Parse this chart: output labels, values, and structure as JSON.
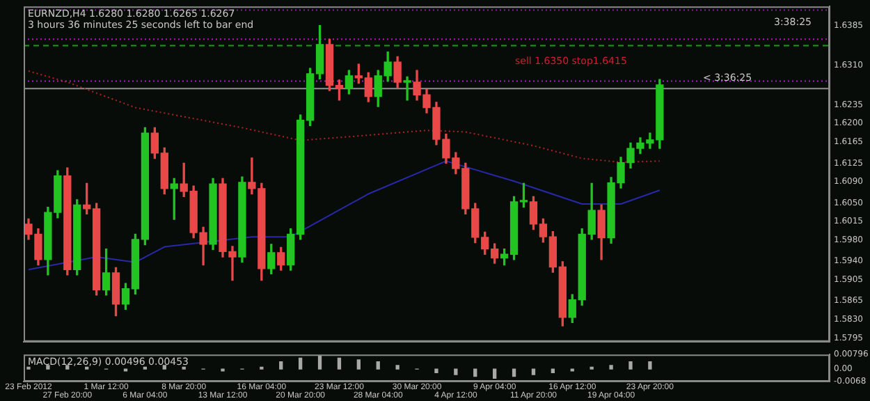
{
  "chart_data": [
    {
      "type": "candlestick",
      "title": "EURNZD,H4  1.6280 1.6280 1.6265 1.6267",
      "subtitle": "3 hours 36 minutes 25 seconds left to bar end",
      "annotations": [
        "sell 1.6350  stop1.6415",
        "3:38:25",
        "< 3:36:25"
      ],
      "categories": [
        null,
        null,
        null,
        null,
        null,
        null,
        null,
        null,
        null,
        null,
        null,
        null,
        null,
        null,
        null,
        null,
        null,
        null,
        null,
        null,
        null,
        null,
        null,
        null,
        null,
        null,
        null,
        null,
        null,
        null,
        null,
        null,
        null,
        null,
        null,
        null,
        null,
        null,
        null,
        null,
        null,
        null,
        null,
        null,
        null,
        null,
        null,
        null,
        null,
        null,
        null,
        null,
        null,
        null,
        null,
        null,
        null,
        null,
        null,
        null,
        null,
        null,
        null,
        null,
        null,
        null,
        null,
        null,
        null,
        null,
        null,
        null,
        null,
        null,
        null,
        null,
        null,
        null,
        null,
        null,
        null,
        null,
        null
      ],
      "ohlc": [
        [
          1.601,
          1.602,
          1.5981,
          1.5991
        ],
        [
          1.5991,
          1.6001,
          1.5933,
          1.5943
        ],
        [
          1.5943,
          1.6042,
          1.5914,
          1.6032
        ],
        [
          1.6032,
          1.6111,
          1.6022,
          1.6101
        ],
        [
          1.6101,
          1.6116,
          1.5914,
          1.5924
        ],
        [
          1.5924,
          1.6056,
          1.5914,
          1.6046
        ],
        [
          1.6046,
          1.6087,
          1.6029,
          1.6039
        ],
        [
          1.6039,
          1.6049,
          1.5876,
          1.5886
        ],
        [
          1.5886,
          1.5963,
          1.5876,
          1.5918
        ],
        [
          1.5918,
          1.5928,
          1.5837,
          1.5859
        ],
        [
          1.5859,
          1.5898,
          1.5849,
          1.5888
        ],
        [
          1.5888,
          1.5991,
          1.5878,
          1.5981
        ],
        [
          1.5981,
          1.6192,
          1.5971,
          1.6182
        ],
        [
          1.6182,
          1.6192,
          1.6134,
          1.6144
        ],
        [
          1.6144,
          1.6154,
          1.6067,
          1.6077
        ],
        [
          1.6077,
          1.6096,
          1.6019,
          1.6086
        ],
        [
          1.6086,
          1.6125,
          1.6062,
          1.6072
        ],
        [
          1.6072,
          1.6082,
          1.5984,
          1.5994
        ],
        [
          1.5994,
          1.6004,
          1.5933,
          1.5972
        ],
        [
          1.5972,
          1.6096,
          1.5962,
          1.6086
        ],
        [
          1.6086,
          1.6096,
          1.5948,
          1.5958
        ],
        [
          1.5958,
          1.5968,
          1.5904,
          1.5948
        ],
        [
          1.5948,
          1.6099,
          1.5938,
          1.6089
        ],
        [
          1.6089,
          1.6135,
          1.6067,
          1.6077
        ],
        [
          1.6077,
          1.6087,
          1.5904,
          1.5926
        ],
        [
          1.5926,
          1.5972,
          1.5916,
          1.5956
        ],
        [
          1.5956,
          1.5966,
          1.5923,
          1.5933
        ],
        [
          1.5933,
          1.6001,
          1.5923,
          1.5991
        ],
        [
          1.5991,
          1.6216,
          1.5981,
          1.6206
        ],
        [
          1.6206,
          1.6304,
          1.6196,
          1.6294
        ],
        [
          1.6294,
          1.6385,
          1.6284,
          1.6349
        ],
        [
          1.6349,
          1.6359,
          1.6262,
          1.6272
        ],
        [
          1.6272,
          1.6282,
          1.6244,
          1.6266
        ],
        [
          1.6266,
          1.63,
          1.6256,
          1.629
        ],
        [
          1.629,
          1.6312,
          1.6276,
          1.6286
        ],
        [
          1.6286,
          1.6296,
          1.6241,
          1.6251
        ],
        [
          1.6251,
          1.63,
          1.6232,
          1.629
        ],
        [
          1.629,
          1.6335,
          1.628,
          1.6316
        ],
        [
          1.6316,
          1.6326,
          1.6268,
          1.6278
        ],
        [
          1.6278,
          1.6288,
          1.6244,
          1.6278
        ],
        [
          1.6278,
          1.63,
          1.6244,
          1.6254
        ],
        [
          1.6254,
          1.6264,
          1.622,
          1.623
        ],
        [
          1.623,
          1.624,
          1.616,
          1.617
        ],
        [
          1.617,
          1.618,
          1.6125,
          1.6135
        ],
        [
          1.6135,
          1.6145,
          1.6105,
          1.6115
        ],
        [
          1.6115,
          1.6125,
          1.6029,
          1.6039
        ],
        [
          1.6039,
          1.6049,
          1.5975,
          1.5985
        ],
        [
          1.5985,
          1.5995,
          1.5953,
          1.5963
        ],
        [
          1.5963,
          1.5973,
          1.5936,
          1.5946
        ],
        [
          1.5946,
          1.5963,
          1.5933,
          1.5953
        ],
        [
          1.5953,
          1.6062,
          1.5943,
          1.6052
        ],
        [
          1.6052,
          1.6087,
          1.6042,
          1.6052
        ],
        [
          1.6052,
          1.6062,
          1.6,
          1.601
        ],
        [
          1.601,
          1.602,
          1.5976,
          1.5986
        ],
        [
          1.5986,
          1.5996,
          1.5919,
          1.5929
        ],
        [
          1.5929,
          1.5939,
          1.5818,
          1.5834
        ],
        [
          1.5834,
          1.5877,
          1.5824,
          1.5867
        ],
        [
          1.5867,
          1.6001,
          1.5857,
          1.5991
        ],
        [
          1.5991,
          1.6087,
          1.5981,
          1.6036
        ],
        [
          1.6036,
          1.6046,
          1.5943,
          1.5984
        ],
        [
          1.5984,
          1.6098,
          1.5974,
          1.6088
        ],
        [
          1.6088,
          1.6136,
          1.6078,
          1.6126
        ],
        [
          1.6126,
          1.6163,
          1.6116,
          1.6153
        ],
        [
          1.6153,
          1.6173,
          1.6143,
          1.6163
        ],
        [
          1.6163,
          1.6182,
          1.6153,
          1.6169
        ],
        [
          1.6169,
          1.6283,
          1.6153,
          1.6273
        ],
        null,
        null,
        null,
        null,
        null,
        null,
        null,
        null,
        null,
        null,
        null,
        null,
        null,
        null,
        null,
        null,
        null
      ],
      "colors": [
        "#e84848",
        "#e84848",
        "#22c422",
        "#22c422",
        "#e84848",
        "#22c422",
        "#e84848",
        "#e84848",
        "#22c422",
        "#e84848",
        "#22c422",
        "#22c422",
        "#22c422",
        "#e84848",
        "#e84848",
        "#22c422",
        "#e84848",
        "#e84848",
        "#e84848",
        "#22c422",
        "#e84848",
        "#e84848",
        "#22c422",
        "#e84848",
        "#e84848",
        "#22c422",
        "#e84848",
        "#22c422",
        "#22c422",
        "#22c422",
        "#22c422",
        "#e84848",
        "#e84848",
        "#22c422",
        "#e84848",
        "#e84848",
        "#22c422",
        "#22c422",
        "#e84848",
        "#22c422",
        "#e84848",
        "#e84848",
        "#e84848",
        "#e84848",
        "#e84848",
        "#e84848",
        "#e84848",
        "#e84848",
        "#e84848",
        "#22c422",
        "#22c422",
        "#22c422",
        "#e84848",
        "#e84848",
        "#e84848",
        "#e84848",
        "#22c422",
        "#22c422",
        "#22c422",
        "#e84848",
        "#22c422",
        "#22c422",
        "#22c422",
        "#22c422",
        "#22c422",
        "#22c422",
        null,
        null,
        null,
        null,
        null,
        null,
        null,
        null,
        null,
        null,
        null,
        null,
        null,
        null,
        null,
        null,
        null
      ],
      "series": [
        {
          "type": "line",
          "color": "#b02424",
          "line_style": "dotted",
          "values": [
            1.6299,
            null,
            null,
            null,
            1.6278,
            null,
            null,
            null,
            null,
            null,
            null,
            1.623,
            null,
            null,
            null,
            null,
            null,
            null,
            null,
            null,
            null,
            null,
            1.6192,
            null,
            null,
            null,
            null,
            null,
            1.6168,
            null,
            null,
            null,
            null,
            1.6175,
            null,
            null,
            null,
            null,
            null,
            null,
            null,
            1.6187,
            null,
            null,
            null,
            1.6184,
            null,
            null,
            null,
            null,
            null,
            null,
            1.6158,
            null,
            null,
            null,
            null,
            1.6134,
            null,
            null,
            null,
            1.6127,
            null,
            null,
            null,
            1.6129,
            null,
            null,
            null,
            null,
            null,
            null,
            null,
            null,
            null,
            null,
            null,
            null,
            null,
            null,
            null,
            null,
            null
          ]
        },
        {
          "type": "line",
          "color": "#2828a8",
          "line_style": "solid",
          "values": [
            1.5924,
            null,
            null,
            null,
            null,
            null,
            null,
            1.5948,
            null,
            null,
            null,
            1.5938,
            null,
            null,
            1.5967,
            null,
            null,
            null,
            null,
            null,
            null,
            null,
            null,
            1.5986,
            null,
            null,
            null,
            1.5986,
            null,
            null,
            null,
            null,
            null,
            null,
            null,
            1.6067,
            null,
            null,
            null,
            null,
            null,
            null,
            null,
            1.6129,
            null,
            null,
            null,
            null,
            null,
            null,
            1.6091,
            null,
            null,
            null,
            null,
            null,
            null,
            1.6048,
            null,
            null,
            null,
            1.6048,
            null,
            null,
            null,
            1.6074,
            null,
            null,
            null,
            null,
            null,
            null,
            null,
            null,
            null,
            null,
            null,
            null,
            null,
            null,
            null,
            null,
            null
          ]
        }
      ],
      "ref_lines": [
        {
          "axis": "y",
          "value": 1.6414,
          "color": "#8a1fa0",
          "line_style": "dotted"
        },
        {
          "axis": "y",
          "value": 1.6359,
          "color": "#c010c0",
          "line_style": "dotted"
        },
        {
          "axis": "y",
          "value": 1.6347,
          "color": "#1a9a1a",
          "line_style": "dashed"
        },
        {
          "axis": "y",
          "value": 1.628,
          "color": "#a020c0",
          "line_style": "dotted"
        },
        {
          "axis": "y",
          "value": 1.6266,
          "color": "#909090",
          "line_style": "solid"
        }
      ],
      "ylim": [
        1.5788,
        1.6421
      ],
      "yticks": [
        {
          "value": 1.6385,
          "label": "1.6385"
        },
        {
          "value": 1.631,
          "label": "1.6310"
        },
        {
          "value": 1.6235,
          "label": "1.6235"
        },
        {
          "value": 1.62,
          "label": "1.6200"
        },
        {
          "value": 1.6165,
          "label": "1.6165"
        },
        {
          "value": 1.6125,
          "label": "1.6125"
        },
        {
          "value": 1.609,
          "label": "1.6090"
        },
        {
          "value": 1.605,
          "label": "1.6050"
        },
        {
          "value": 1.6015,
          "label": "1.6015"
        },
        {
          "value": 1.598,
          "label": "1.5980"
        },
        {
          "value": 1.594,
          "label": "1.5940"
        },
        {
          "value": 1.5905,
          "label": "1.5905"
        },
        {
          "value": 1.5865,
          "label": "1.5865"
        },
        {
          "value": 1.583,
          "label": "1.5830"
        },
        {
          "value": 1.5795,
          "label": "1.5795"
        }
      ],
      "tick_labels": "y"
    },
    {
      "type": "bar",
      "title": "MACD(12,26,9) 0.00496 0.00453",
      "color": "#a8a8a8",
      "categories": [
        "23 Feb 2012",
        null,
        null,
        null,
        "27 Feb 20:00",
        null,
        null,
        null,
        "1 Mar 12:00",
        null,
        null,
        null,
        "6 Mar 04:00",
        null,
        null,
        null,
        "8 Mar 20:00",
        null,
        null,
        null,
        "13 Mar 12:00",
        null,
        null,
        null,
        "16 Mar 04:00",
        null,
        null,
        null,
        "20 Mar 20:00",
        null,
        null,
        null,
        "23 Mar 12:00",
        null,
        null,
        null,
        "28 Mar 04:00",
        null,
        null,
        null,
        "30 Mar 20:00",
        null,
        null,
        null,
        "4 Apr 12:00",
        null,
        null,
        null,
        "9 Apr 04:00",
        null,
        null,
        null,
        "11 Apr 20:00",
        null,
        null,
        null,
        "16 Apr 12:00",
        null,
        null,
        null,
        "19 Apr 04:00",
        null,
        null,
        null,
        "23 Apr 20:00",
        null,
        null,
        null,
        null,
        null,
        null,
        null,
        null,
        null,
        null,
        null,
        null,
        null,
        null,
        null,
        null,
        null,
        null
      ],
      "values": [
        0.001,
        null,
        0.002,
        null,
        0.002,
        null,
        0.001,
        null,
        0.0,
        null,
        -0.001,
        null,
        0.001,
        null,
        0.002,
        null,
        0.001,
        null,
        0.0,
        null,
        -0.001,
        null,
        0.0,
        null,
        0.001,
        null,
        0.004,
        null,
        0.006,
        null,
        0.007,
        null,
        0.006,
        null,
        0.005,
        null,
        0.004,
        null,
        0.002,
        null,
        0.0,
        null,
        -0.002,
        null,
        -0.003,
        null,
        -0.004,
        null,
        -0.005,
        null,
        -0.004,
        null,
        -0.003,
        null,
        -0.002,
        null,
        -0.001,
        null,
        0.001,
        null,
        0.002,
        null,
        0.004,
        null,
        0.004,
        null,
        null,
        null,
        null,
        null,
        null,
        null,
        null,
        null,
        null,
        null,
        null,
        null,
        null,
        null,
        null,
        null,
        null
      ],
      "ylim": [
        -0.0068,
        0.00796
      ],
      "yticks": [
        0.00796,
        {
          "value": 0,
          "label": "0.00"
        },
        -0.0068
      ]
    }
  ]
}
